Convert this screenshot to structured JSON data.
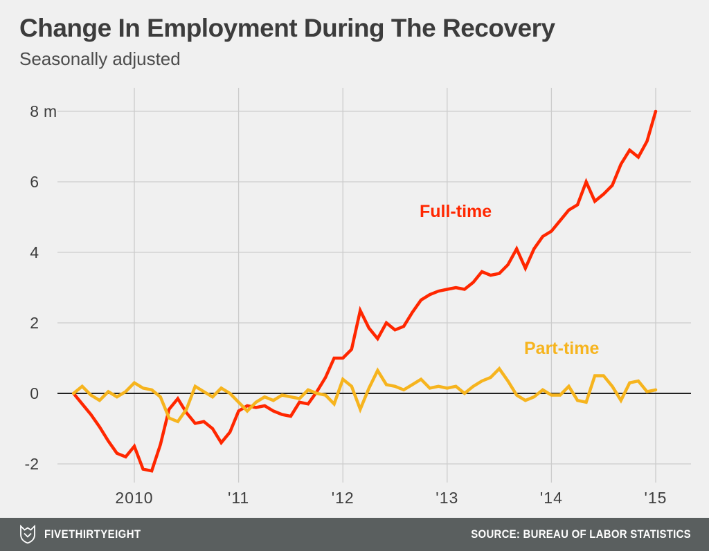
{
  "header": {
    "title": "Change In Employment During The Recovery",
    "subtitle": "Seasonally adjusted"
  },
  "chart_data": {
    "type": "line",
    "title": "Change In Employment During The Recovery",
    "subtitle": "Seasonally adjusted",
    "x_unit": "monthly, Jun 2009 - Jan 2015",
    "ylabel": "Change in employment, millions",
    "ylim": [
      -2.6,
      8.7
    ],
    "grid": true,
    "zero_line": true,
    "legend_position": "inline-labels",
    "y_ticks": [
      {
        "value": 8,
        "label": "8",
        "suffix": "m"
      },
      {
        "value": 6,
        "label": "6"
      },
      {
        "value": 4,
        "label": "4"
      },
      {
        "value": 2,
        "label": "2"
      },
      {
        "value": 0,
        "label": "0"
      },
      {
        "value": -2,
        "label": "-2"
      }
    ],
    "x_ticks": [
      {
        "month_index": 7,
        "label": "2010"
      },
      {
        "month_index": 19,
        "label": "'11"
      },
      {
        "month_index": 31,
        "label": "'12"
      },
      {
        "month_index": 43,
        "label": "'13"
      },
      {
        "month_index": 55,
        "label": "'14"
      },
      {
        "month_index": 67,
        "label": "'15"
      }
    ],
    "series": [
      {
        "name": "Full-time",
        "color": "#ff2700",
        "start": "2009-06",
        "values": [
          0,
          -0.3,
          -0.6,
          -0.95,
          -1.35,
          -1.7,
          -1.8,
          -1.5,
          -2.15,
          -2.2,
          -1.45,
          -0.45,
          -0.15,
          -0.55,
          -0.85,
          -0.8,
          -1.0,
          -1.4,
          -1.1,
          -0.5,
          -0.35,
          -0.4,
          -0.35,
          -0.5,
          -0.6,
          -0.65,
          -0.25,
          -0.3,
          0.05,
          0.45,
          1.0,
          1.0,
          1.25,
          2.35,
          1.85,
          1.55,
          2.0,
          1.8,
          1.9,
          2.3,
          2.65,
          2.8,
          2.9,
          2.95,
          3.0,
          2.95,
          3.15,
          3.45,
          3.35,
          3.4,
          3.65,
          4.1,
          3.55,
          4.1,
          4.45,
          4.6,
          4.9,
          5.2,
          5.35,
          6.0,
          5.45,
          5.65,
          5.9,
          6.5,
          6.9,
          6.7,
          7.15,
          8.0
        ]
      },
      {
        "name": "Part-time",
        "color": "#f6b41e",
        "start": "2009-06",
        "values": [
          0,
          0.2,
          -0.05,
          -0.2,
          0.05,
          -0.1,
          0.05,
          0.3,
          0.15,
          0.1,
          -0.1,
          -0.7,
          -0.8,
          -0.45,
          0.2,
          0.05,
          -0.1,
          0.15,
          0.0,
          -0.25,
          -0.5,
          -0.25,
          -0.1,
          -0.2,
          -0.05,
          -0.1,
          -0.15,
          0.1,
          0.0,
          -0.05,
          -0.3,
          0.4,
          0.2,
          -0.45,
          0.15,
          0.65,
          0.25,
          0.2,
          0.1,
          0.25,
          0.4,
          0.15,
          0.2,
          0.15,
          0.2,
          0.0,
          0.2,
          0.35,
          0.45,
          0.7,
          0.35,
          -0.05,
          -0.2,
          -0.1,
          0.1,
          -0.05,
          -0.05,
          0.2,
          -0.2,
          -0.25,
          0.5,
          0.5,
          0.2,
          -0.2,
          0.3,
          0.35,
          0.05,
          0.1
        ]
      }
    ]
  },
  "colors": {
    "background": "#f0f0f0",
    "grid": "#cccccc",
    "zero_line": "#212121",
    "tick_text": "#3d3d3d",
    "full_time": "#ff2700",
    "part_time": "#f6b41e",
    "footer_bg": "#5a5f5f",
    "footer_text": "#ffffff"
  },
  "footer": {
    "brand": "FIVETHIRTYEIGHT",
    "source": "SOURCE: BUREAU OF LABOR STATISTICS"
  }
}
